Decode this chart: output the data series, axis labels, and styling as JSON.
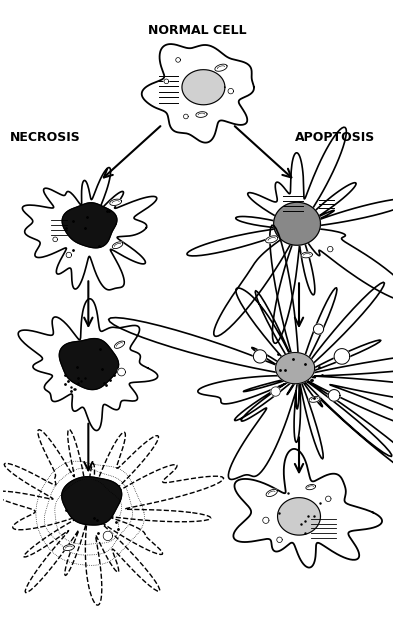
{
  "title": "NORMAL CELL",
  "label_necrosis": "NECROSIS",
  "label_apoptosis": "APOPTOSIS",
  "bg_color": "#ffffff",
  "font_size_title": 9,
  "font_size_label": 9,
  "fig_width": 3.97,
  "fig_height": 6.27,
  "dpi": 100
}
